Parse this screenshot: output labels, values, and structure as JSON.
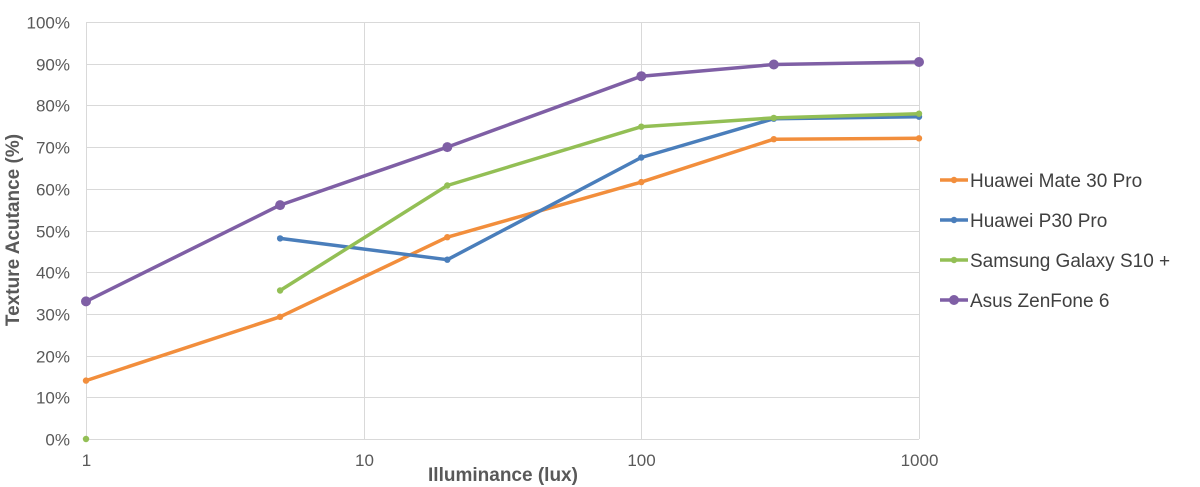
{
  "chart_data": {
    "type": "line",
    "title": "",
    "xlabel": "Illuminance (lux)",
    "ylabel": "Texture Acutance (%)",
    "x_scale": "log",
    "xlim": [
      1,
      1000
    ],
    "ylim": [
      0,
      100
    ],
    "x_ticks": [
      1,
      10,
      100,
      1000
    ],
    "x_tick_labels": [
      "1",
      "10",
      "100",
      "1000"
    ],
    "y_ticks": [
      0,
      10,
      20,
      30,
      40,
      50,
      60,
      70,
      80,
      90,
      100
    ],
    "y_tick_labels": [
      "0%",
      "10%",
      "20%",
      "30%",
      "40%",
      "50%",
      "60%",
      "70%",
      "80%",
      "90%",
      "100%"
    ],
    "grid": true,
    "legend_position": "right",
    "series": [
      {
        "name": "Huawei Mate 30 Pro",
        "color": "#f28e3c",
        "marker": "small",
        "points": [
          [
            1,
            14
          ],
          [
            5,
            29.3
          ],
          [
            20,
            48.4
          ],
          [
            100,
            61.6
          ],
          [
            300,
            71.9
          ],
          [
            1000,
            72.1
          ]
        ]
      },
      {
        "name": "Huawei P30 Pro",
        "color": "#4a7ebb",
        "marker": "small",
        "points": [
          [
            5,
            48.1
          ],
          [
            20,
            43
          ],
          [
            100,
            67.5
          ],
          [
            300,
            76.8
          ],
          [
            1000,
            77.3
          ]
        ]
      },
      {
        "name": "Samsung Galaxy S10 +",
        "color": "#93bf55",
        "marker": "small",
        "points": [
          [
            1,
            0
          ],
          [
            5,
            35.6
          ],
          [
            20,
            60.8
          ],
          [
            100,
            74.9
          ],
          [
            300,
            77
          ],
          [
            1000,
            78
          ]
        ],
        "segments_disconnected_after_index": [
          0
        ]
      },
      {
        "name": "Asus ZenFone 6",
        "color": "#7f5fa5",
        "marker": "large",
        "points": [
          [
            1,
            33
          ],
          [
            5,
            56.1
          ],
          [
            20,
            70
          ],
          [
            100,
            87
          ],
          [
            300,
            89.8
          ],
          [
            1000,
            90.4
          ]
        ]
      }
    ]
  }
}
